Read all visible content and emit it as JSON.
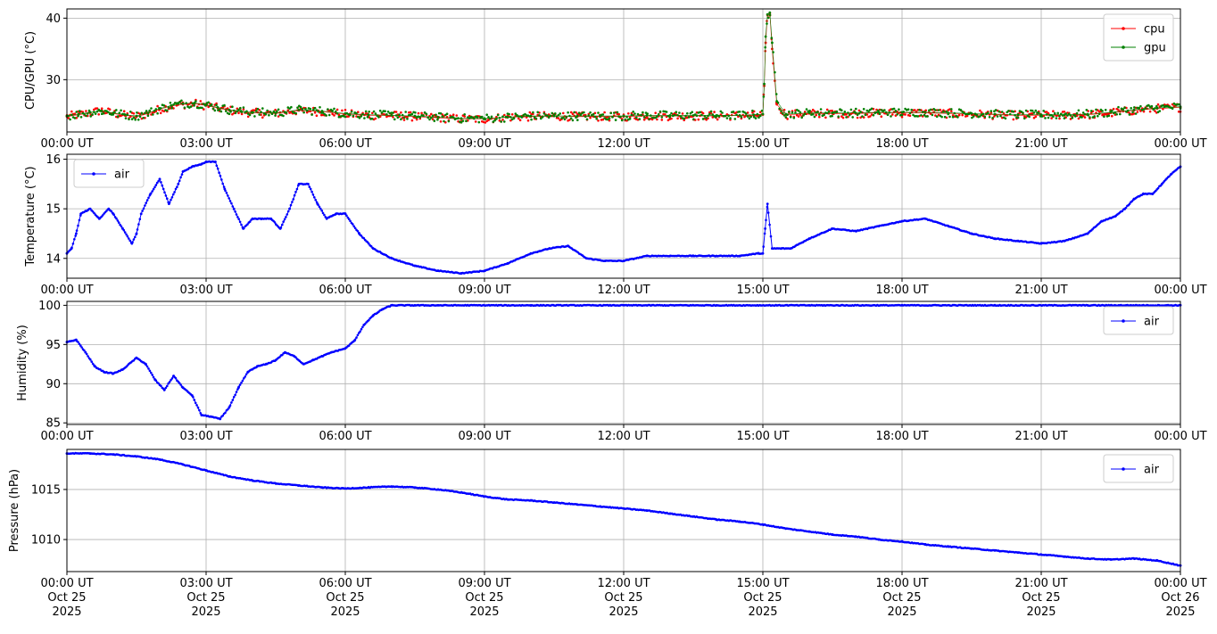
{
  "chart_data": [
    {
      "type": "scatter",
      "ylabel": "CPU/GPU (°C)",
      "ylim": [
        21.5,
        41.5
      ],
      "yticks": [
        30,
        40
      ],
      "xlim": [
        "2025-10-25T00:00",
        "2025-10-26T00:00"
      ],
      "xticks": [
        "00:00 UT",
        "03:00 UT",
        "06:00 UT",
        "09:00 UT",
        "12:00 UT",
        "15:00 UT",
        "18:00 UT",
        "21:00 UT",
        "00:00 UT"
      ],
      "grid": true,
      "legend": {
        "position": "top-right",
        "entries": [
          "cpu",
          "gpu"
        ]
      },
      "series": [
        {
          "name": "cpu",
          "color": "#ff0000",
          "x": [
            0,
            0.25,
            0.5,
            0.75,
            1,
            1.25,
            1.5,
            1.75,
            2,
            2.25,
            2.5,
            2.75,
            3,
            3.25,
            3.5,
            3.75,
            4,
            4.5,
            5,
            5.5,
            6,
            6.5,
            7,
            7.5,
            8,
            8.5,
            9,
            9.5,
            10,
            10.5,
            11,
            11.5,
            12,
            12.5,
            13,
            13.5,
            14,
            14.5,
            14.8,
            15,
            15.03,
            15.06,
            15.1,
            15.15,
            15.2,
            15.3,
            15.5,
            16,
            16.5,
            17,
            17.5,
            18,
            18.5,
            19,
            19.5,
            20,
            20.5,
            21,
            21.5,
            22,
            22.5,
            23,
            23.5,
            24
          ],
          "y": [
            24,
            24.3,
            24.6,
            25,
            24.5,
            24.2,
            24,
            24.5,
            25.2,
            25.7,
            26,
            26.1,
            25.8,
            25.4,
            25,
            24.8,
            24.6,
            24.5,
            25,
            24.8,
            24.4,
            24.2,
            24.2,
            24,
            23.8,
            23.6,
            23.6,
            23.9,
            24,
            24.1,
            24,
            24,
            24,
            24.1,
            24.1,
            24.1,
            24.1,
            24.2,
            24.2,
            24.3,
            29,
            36,
            40.5,
            40.8,
            35,
            26,
            24.3,
            24.5,
            24.5,
            24.5,
            24.6,
            24.6,
            24.6,
            24.5,
            24.4,
            24.3,
            24.2,
            24.2,
            24.2,
            24.3,
            24.6,
            25,
            25.3,
            25.5
          ]
        },
        {
          "name": "gpu",
          "color": "#008000",
          "x": [
            0,
            0.25,
            0.5,
            0.75,
            1,
            1.25,
            1.5,
            1.75,
            2,
            2.25,
            2.5,
            2.75,
            3,
            3.25,
            3.5,
            3.75,
            4,
            4.5,
            5,
            5.5,
            6,
            6.5,
            7,
            7.5,
            8,
            8.5,
            9,
            9.5,
            10,
            10.5,
            11,
            11.5,
            12,
            12.5,
            13,
            13.5,
            14,
            14.5,
            14.8,
            15,
            15.03,
            15.06,
            15.1,
            15.15,
            15.2,
            15.3,
            15.5,
            16,
            16.5,
            17,
            17.5,
            18,
            18.5,
            19,
            19.5,
            20,
            20.5,
            21,
            21.5,
            22,
            22.5,
            23,
            23.5,
            24
          ],
          "y": [
            24.1,
            24.4,
            24.7,
            24.9,
            24.6,
            24.3,
            24.1,
            24.6,
            25.3,
            25.8,
            26.1,
            26.2,
            25.9,
            25.5,
            25.1,
            24.9,
            24.7,
            24.6,
            25.1,
            24.9,
            24.5,
            24.3,
            24.2,
            24.1,
            23.9,
            23.7,
            23.7,
            23.9,
            24.1,
            24.1,
            24.1,
            24.1,
            24.1,
            24.2,
            24.2,
            24.2,
            24.2,
            24.2,
            24.3,
            24.4,
            29.3,
            37,
            40.6,
            40.9,
            36,
            26.5,
            24.4,
            24.6,
            24.6,
            24.6,
            24.7,
            24.7,
            24.7,
            24.6,
            24.5,
            24.4,
            24.3,
            24.3,
            24.3,
            24.4,
            24.7,
            25.1,
            25.4,
            25.6
          ]
        }
      ]
    },
    {
      "type": "line",
      "ylabel": "Temperature (°C)",
      "ylim": [
        13.6,
        16.1
      ],
      "yticks": [
        14,
        15,
        16
      ],
      "xlim": [
        "2025-10-25T00:00",
        "2025-10-26T00:00"
      ],
      "xticks": [
        "00:00 UT",
        "03:00 UT",
        "06:00 UT",
        "09:00 UT",
        "12:00 UT",
        "15:00 UT",
        "18:00 UT",
        "21:00 UT",
        "00:00 UT"
      ],
      "grid": true,
      "legend": {
        "position": "top-left",
        "entries": [
          "air"
        ]
      },
      "series": [
        {
          "name": "air",
          "color": "#0000ff",
          "x": [
            0,
            0.1,
            0.2,
            0.3,
            0.5,
            0.7,
            0.9,
            1.0,
            1.2,
            1.4,
            1.5,
            1.6,
            1.8,
            2.0,
            2.2,
            2.4,
            2.5,
            2.7,
            2.9,
            3.0,
            3.2,
            3.4,
            3.6,
            3.8,
            4.0,
            4.2,
            4.4,
            4.6,
            4.8,
            5.0,
            5.2,
            5.4,
            5.6,
            5.8,
            6.0,
            6.3,
            6.6,
            7.0,
            7.5,
            8.0,
            8.5,
            9.0,
            9.5,
            10.0,
            10.4,
            10.8,
            11.2,
            11.6,
            12.0,
            12.5,
            13.0,
            13.5,
            14.0,
            14.5,
            14.9,
            15.0,
            15.05,
            15.1,
            15.2,
            15.4,
            15.6,
            16.0,
            16.5,
            17.0,
            17.5,
            18.0,
            18.5,
            19.0,
            19.5,
            20.0,
            20.5,
            21.0,
            21.5,
            22.0,
            22.3,
            22.6,
            22.8,
            23.0,
            23.2,
            23.4,
            23.6,
            23.8,
            24.0
          ],
          "y": [
            14.1,
            14.2,
            14.5,
            14.9,
            15.0,
            14.8,
            15.0,
            14.9,
            14.6,
            14.3,
            14.5,
            14.9,
            15.3,
            15.6,
            15.1,
            15.5,
            15.75,
            15.85,
            15.9,
            15.95,
            15.95,
            15.4,
            15.0,
            14.6,
            14.8,
            14.8,
            14.8,
            14.6,
            15.0,
            15.5,
            15.5,
            15.1,
            14.8,
            14.9,
            14.9,
            14.5,
            14.2,
            14.0,
            13.85,
            13.75,
            13.7,
            13.75,
            13.9,
            14.1,
            14.2,
            14.25,
            14.0,
            13.95,
            13.95,
            14.05,
            14.05,
            14.05,
            14.05,
            14.05,
            14.1,
            14.1,
            14.6,
            15.1,
            14.2,
            14.2,
            14.2,
            14.4,
            14.6,
            14.55,
            14.65,
            14.75,
            14.8,
            14.65,
            14.5,
            14.4,
            14.35,
            14.3,
            14.35,
            14.5,
            14.75,
            14.85,
            15.0,
            15.2,
            15.3,
            15.3,
            15.5,
            15.7,
            15.85
          ]
        }
      ]
    },
    {
      "type": "line",
      "ylabel": "Humidity (%)",
      "ylim": [
        84.8,
        100.5
      ],
      "yticks": [
        85,
        90,
        95,
        100
      ],
      "xlim": [
        "2025-10-25T00:00",
        "2025-10-26T00:00"
      ],
      "xticks": [
        "00:00 UT",
        "03:00 UT",
        "06:00 UT",
        "09:00 UT",
        "12:00 UT",
        "15:00 UT",
        "18:00 UT",
        "21:00 UT",
        "00:00 UT"
      ],
      "grid": true,
      "legend": {
        "position": "top-right",
        "entries": [
          "air"
        ]
      },
      "series": [
        {
          "name": "air",
          "color": "#0000ff",
          "x": [
            0,
            0.2,
            0.4,
            0.6,
            0.8,
            1.0,
            1.2,
            1.5,
            1.7,
            1.9,
            2.1,
            2.3,
            2.5,
            2.7,
            2.9,
            3.1,
            3.3,
            3.5,
            3.7,
            3.9,
            4.1,
            4.3,
            4.5,
            4.7,
            4.9,
            5.1,
            5.3,
            5.5,
            5.7,
            6.0,
            6.2,
            6.4,
            6.6,
            6.8,
            7.0,
            7.5,
            8,
            10,
            12,
            14,
            16,
            18,
            20,
            22,
            24
          ],
          "y": [
            95.3,
            95.6,
            94.0,
            92.2,
            91.5,
            91.3,
            91.8,
            93.3,
            92.5,
            90.5,
            89.2,
            91.0,
            89.5,
            88.5,
            86.0,
            85.8,
            85.5,
            87.0,
            89.5,
            91.5,
            92.2,
            92.5,
            93.0,
            94.0,
            93.5,
            92.5,
            93.0,
            93.5,
            94.0,
            94.5,
            95.5,
            97.5,
            98.7,
            99.5,
            100,
            100,
            100,
            100,
            100,
            100,
            100,
            100,
            100,
            100,
            100
          ]
        }
      ]
    },
    {
      "type": "line",
      "ylabel": "Pressure (hPa)",
      "ylim": [
        1006.8,
        1019.0
      ],
      "yticks": [
        1010,
        1015
      ],
      "xlim": [
        "2025-10-25T00:00",
        "2025-10-26T00:00"
      ],
      "xticks": [
        "00:00 UT\nOct 25\n2025",
        "03:00 UT\nOct 25\n2025",
        "06:00 UT\nOct 25\n2025",
        "09:00 UT\nOct 25\n2025",
        "12:00 UT\nOct 25\n2025",
        "15:00 UT\nOct 25\n2025",
        "18:00 UT\nOct 25\n2025",
        "21:00 UT\nOct 25\n2025",
        "00:00 UT\nOct 26\n2025"
      ],
      "grid": true,
      "legend": {
        "position": "top-right",
        "entries": [
          "air"
        ]
      },
      "series": [
        {
          "name": "air",
          "color": "#0000ff",
          "x": [
            0,
            0.5,
            1,
            1.5,
            2,
            2.5,
            3,
            3.5,
            4,
            4.5,
            5,
            5.5,
            6,
            6.5,
            7,
            7.5,
            8,
            8.5,
            9,
            9.5,
            10,
            10.5,
            11,
            11.5,
            12,
            12.5,
            13,
            13.5,
            14,
            14.5,
            15,
            15.5,
            16,
            16.5,
            17,
            17.5,
            18,
            18.5,
            19,
            19.5,
            20,
            20.5,
            21,
            21.5,
            22,
            22.5,
            23,
            23.5,
            24
          ],
          "y": [
            1018.6,
            1018.6,
            1018.5,
            1018.3,
            1018.0,
            1017.5,
            1016.9,
            1016.3,
            1015.9,
            1015.6,
            1015.4,
            1015.2,
            1015.1,
            1015.2,
            1015.3,
            1015.2,
            1015.0,
            1014.7,
            1014.3,
            1014.0,
            1013.9,
            1013.7,
            1013.5,
            1013.3,
            1013.1,
            1012.9,
            1012.6,
            1012.3,
            1012.0,
            1011.8,
            1011.5,
            1011.1,
            1010.8,
            1010.5,
            1010.3,
            1010.0,
            1009.8,
            1009.5,
            1009.3,
            1009.1,
            1008.9,
            1008.7,
            1008.5,
            1008.3,
            1008.1,
            1008.0,
            1008.1,
            1007.9,
            1007.4
          ]
        }
      ]
    }
  ]
}
